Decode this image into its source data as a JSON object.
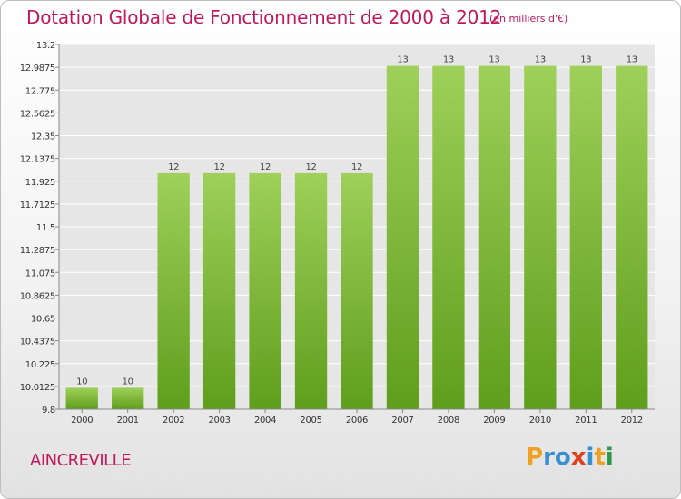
{
  "title": "Dotation Globale de Fonctionnement de 2000 à 2012",
  "subtitle": "(en milliers d'€)",
  "commune": "AINCREVILLE",
  "brand": {
    "letters": [
      "P",
      "r",
      "o",
      "x",
      "i",
      "t",
      "i"
    ],
    "colors": [
      "#f0a020",
      "#3a8fd0",
      "#3a8fd0",
      "#e04020",
      "#3a8fd0",
      "#f0a020",
      "#2a9a4a"
    ]
  },
  "colors": {
    "title": "#c2185b",
    "bar_top": "#9ed05a",
    "bar_bottom": "#5f9e1c",
    "grid": "#ffffff",
    "plot_bg": "#e6e6e6"
  },
  "chart_data": {
    "type": "bar",
    "categories": [
      "2000",
      "2001",
      "2002",
      "2003",
      "2004",
      "2005",
      "2006",
      "2007",
      "2008",
      "2009",
      "2010",
      "2011",
      "2012"
    ],
    "values": [
      10,
      10,
      12,
      12,
      12,
      12,
      12,
      13,
      13,
      13,
      13,
      13,
      13
    ],
    "value_labels": [
      "10",
      "10",
      "12",
      "12",
      "12",
      "12",
      "12",
      "13",
      "13",
      "13",
      "13",
      "13",
      "13"
    ],
    "yticks": [
      "9.8",
      "10.0125",
      "10.225",
      "10.4375",
      "10.65",
      "10.8625",
      "11.075",
      "11.2875",
      "11.5",
      "11.7125",
      "11.925",
      "12.1375",
      "12.35",
      "12.5625",
      "12.775",
      "12.9875",
      "13.2"
    ],
    "ylim": [
      9.8,
      13.2
    ],
    "grid": true
  }
}
